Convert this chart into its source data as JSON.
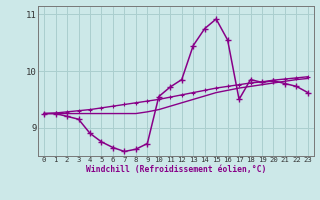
{
  "x": [
    0,
    1,
    2,
    3,
    4,
    5,
    6,
    7,
    8,
    9,
    10,
    11,
    12,
    13,
    14,
    15,
    16,
    17,
    18,
    19,
    20,
    21,
    22,
    23
  ],
  "windchill": [
    9.25,
    9.25,
    9.2,
    9.15,
    8.9,
    8.75,
    8.65,
    8.58,
    8.62,
    8.72,
    9.55,
    9.72,
    9.85,
    10.45,
    10.75,
    10.92,
    10.55,
    9.5,
    9.85,
    9.8,
    9.83,
    9.78,
    9.73,
    9.62
  ],
  "line2": [
    9.25,
    9.26,
    9.28,
    9.3,
    9.32,
    9.35,
    9.38,
    9.41,
    9.44,
    9.47,
    9.5,
    9.54,
    9.58,
    9.62,
    9.66,
    9.7,
    9.73,
    9.76,
    9.79,
    9.81,
    9.84,
    9.86,
    9.88,
    9.9
  ],
  "line3": [
    9.25,
    9.25,
    9.25,
    9.25,
    9.25,
    9.25,
    9.25,
    9.25,
    9.25,
    9.28,
    9.32,
    9.38,
    9.44,
    9.5,
    9.56,
    9.62,
    9.66,
    9.7,
    9.73,
    9.76,
    9.79,
    9.82,
    9.85,
    9.87
  ],
  "color": "#880088",
  "bg_color": "#cce8e8",
  "grid_color": "#aacece",
  "ylim_min": 8.5,
  "ylim_max": 11.15,
  "xlim_min": -0.5,
  "xlim_max": 23.5,
  "yticks": [
    9,
    10,
    11
  ],
  "xticks": [
    0,
    1,
    2,
    3,
    4,
    5,
    6,
    7,
    8,
    9,
    10,
    11,
    12,
    13,
    14,
    15,
    16,
    17,
    18,
    19,
    20,
    21,
    22,
    23
  ],
  "xlabel": "Windchill (Refroidissement éolien,°C)"
}
